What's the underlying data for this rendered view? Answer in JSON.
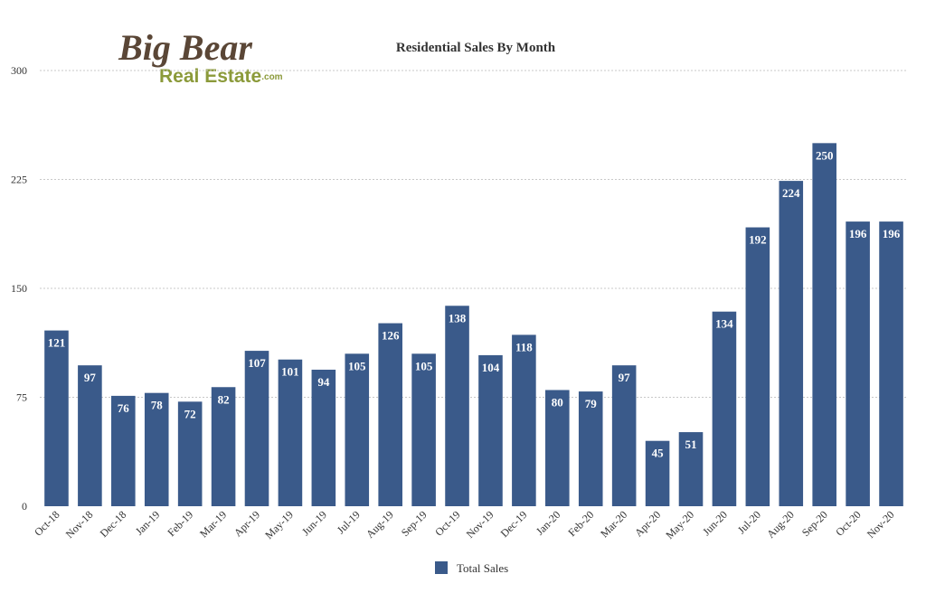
{
  "logo": {
    "line1": "Big Bear",
    "line2": "Real Estate",
    "suffix": ".com"
  },
  "colors": {
    "bar": "#3a5a8a",
    "grid": "#c8c8c8",
    "text": "#333333",
    "logo_brown": "#5a4636",
    "logo_green": "#8b9a3a"
  },
  "chart_data": {
    "type": "bar",
    "title": "Residential Sales By Month",
    "xlabel": "",
    "ylabel": "",
    "ylim": [
      0,
      300
    ],
    "yticks": [
      0,
      75,
      150,
      225,
      300
    ],
    "grid": true,
    "legend_position": "bottom",
    "categories": [
      "Oct-18",
      "Nov-18",
      "Dec-18",
      "Jan-19",
      "Feb-19",
      "Mar-19",
      "Apr-19",
      "May-19",
      "Jun-19",
      "Jul-19",
      "Aug-19",
      "Sep-19",
      "Oct-19",
      "Nov-19",
      "Dec-19",
      "Jan-20",
      "Feb-20",
      "Mar-20",
      "Apr-20",
      "May-20",
      "Jun-20",
      "Jul-20",
      "Aug-20",
      "Sep-20",
      "Oct-20",
      "Nov-20"
    ],
    "series": [
      {
        "name": "Total Sales",
        "values": [
          121,
          97,
          76,
          78,
          72,
          82,
          107,
          101,
          94,
          105,
          126,
          105,
          138,
          104,
          118,
          80,
          79,
          97,
          45,
          51,
          134,
          192,
          224,
          250,
          196,
          196
        ]
      }
    ]
  }
}
